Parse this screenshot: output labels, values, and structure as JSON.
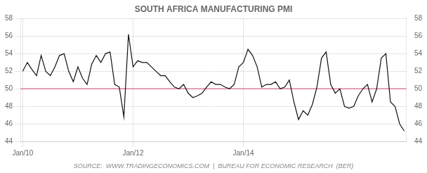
{
  "chart_data": {
    "type": "line",
    "title": "SOUTH AFRICA MANUFACTURING PMI",
    "source": "SOURCE:  WWW.TRADINGECONOMICS.COM  |  BUREAU FOR ECONOMIC RESEARCH  (BER)",
    "categories": [
      "Jan/10",
      null,
      null,
      null,
      null,
      null,
      null,
      null,
      null,
      null,
      null,
      null,
      null,
      null,
      null,
      null,
      null,
      null,
      null,
      null,
      null,
      null,
      null,
      null,
      "Jan/12",
      null,
      null,
      null,
      null,
      null,
      null,
      null,
      null,
      null,
      null,
      null,
      null,
      null,
      null,
      null,
      null,
      null,
      null,
      null,
      null,
      null,
      null,
      null,
      "Jan/14",
      null,
      null,
      null,
      null,
      null,
      null,
      null,
      null,
      null,
      null,
      null,
      null,
      null,
      null,
      null,
      null,
      null,
      null,
      null,
      null,
      null,
      null,
      null,
      null,
      null,
      null,
      null,
      null,
      null,
      null,
      null,
      null,
      null,
      null,
      null
    ],
    "values": [
      52.0,
      53.0,
      52.2,
      51.5,
      53.8,
      52.0,
      51.5,
      52.5,
      53.8,
      54.0,
      52.0,
      50.8,
      52.5,
      51.2,
      50.5,
      52.8,
      53.8,
      53.0,
      54.0,
      54.2,
      50.5,
      50.2,
      46.8,
      56.2,
      52.5,
      53.2,
      53.0,
      53.0,
      52.5,
      52.0,
      51.5,
      51.5,
      50.8,
      50.2,
      50.0,
      50.5,
      49.5,
      49.0,
      49.2,
      49.5,
      50.2,
      50.8,
      50.5,
      50.5,
      50.2,
      50.0,
      50.5,
      52.5,
      53.0,
      54.5,
      53.8,
      52.5,
      50.2,
      50.5,
      50.5,
      50.8,
      50.0,
      50.2,
      51.0,
      48.5,
      46.5,
      47.5,
      47.0,
      48.2,
      50.2,
      53.5,
      54.2,
      50.5,
      49.5,
      50.0,
      48.0,
      47.8,
      48.0,
      49.2,
      50.0,
      50.5,
      48.5,
      50.0,
      53.5,
      54.0,
      48.5,
      48.0,
      46.0,
      45.2
    ],
    "color": "#111111",
    "hline": {
      "value": 50,
      "color": "#d87fa0"
    },
    "ylim": [
      44,
      58
    ],
    "yticks": [
      44,
      46,
      48,
      50,
      52,
      54,
      56,
      58
    ],
    "y2lim": [
      44,
      58
    ],
    "y2ticks": [
      44,
      46,
      48,
      50,
      52,
      54,
      56,
      58
    ],
    "grid": true
  }
}
